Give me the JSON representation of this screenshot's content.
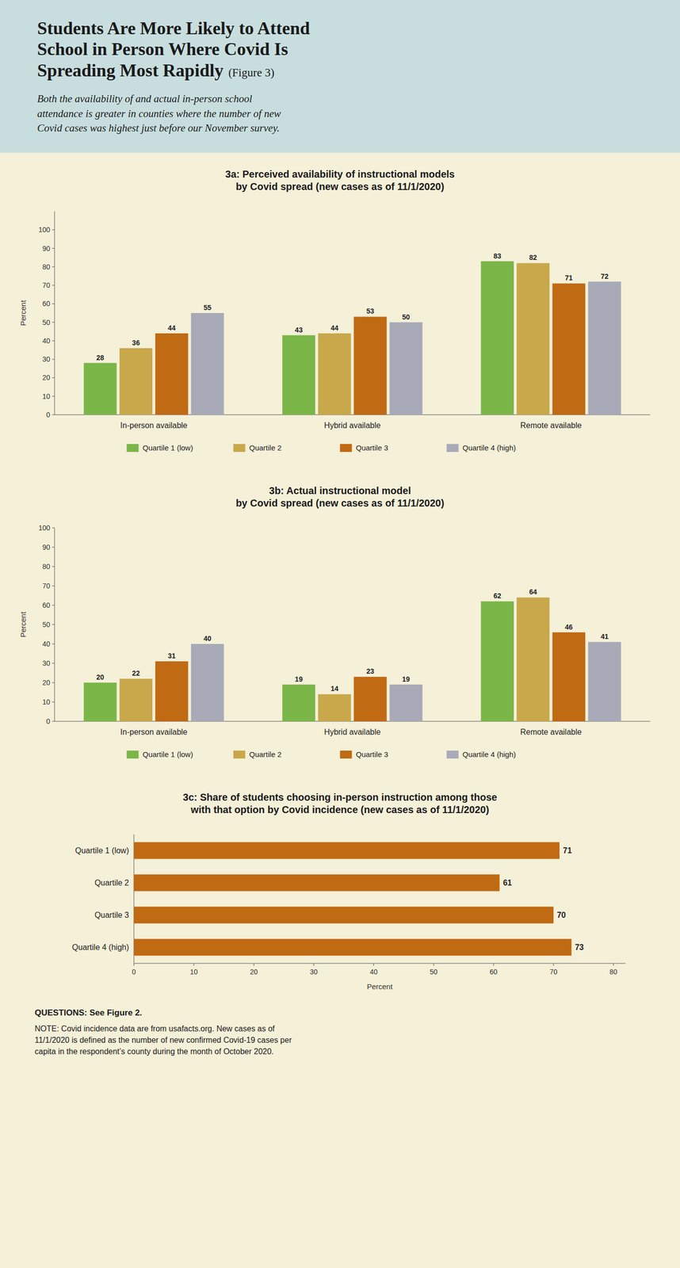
{
  "title": "Students Are More Likely to Attend\nSchool in Person Where Covid Is\nSpreading Most Rapidly",
  "subtitle": "Both the availability of and actual in-person school\nattendance is greater in counties where the number of new\nCovid cases was highest just before our November survey.",
  "annotations": [
    "(Figure 3)",
    "QUESTIONS: See Figure 2.",
    "NOTE: Covid incidence data are from usafacts.org. New cases as of\n11/1/2020 is defined as the number of new confirmed Covid-19 cases per\ncapita in the respondent’s county during the month of October 2020."
  ],
  "chart_data": [
    {
      "type": "bar",
      "title": "3a: Perceived availability of instructional models\nby Covid spread (new cases as of 11/1/2020)",
      "categories": [
        "In-person available",
        "Hybrid available",
        "Remote available"
      ],
      "series": [
        {
          "name": "Quartile 1 (low)",
          "color": "#7ab648",
          "values": [
            28,
            43,
            83
          ]
        },
        {
          "name": "Quartile 2",
          "color": "#c8a84b",
          "values": [
            36,
            44,
            82
          ]
        },
        {
          "name": "Quartile 3",
          "color": "#c06a14",
          "values": [
            44,
            53,
            71
          ]
        },
        {
          "name": "Quartile 4 (high)",
          "color": "#a8aab8",
          "values": [
            55,
            50,
            72
          ]
        }
      ],
      "ylabel": "Percent",
      "ylim": [
        0,
        110
      ],
      "yticks": [
        0,
        10,
        20,
        30,
        40,
        50,
        60,
        70,
        80,
        90,
        100
      ],
      "grid": false,
      "legend": "bottom",
      "data_labels": true
    },
    {
      "type": "bar",
      "title": "3b: Actual instructional model\nby Covid spread (new cases as of 11/1/2020)",
      "categories": [
        "In-person available",
        "Hybrid available",
        "Remote available"
      ],
      "series": [
        {
          "name": "Quartile 1 (low)",
          "color": "#7ab648",
          "values": [
            20,
            19,
            62
          ]
        },
        {
          "name": "Quartile 2",
          "color": "#c8a84b",
          "values": [
            22,
            14,
            64
          ]
        },
        {
          "name": "Quartile 3",
          "color": "#c06a14",
          "values": [
            31,
            23,
            46
          ]
        },
        {
          "name": "Quartile 4 (high)",
          "color": "#a8aab8",
          "values": [
            40,
            19,
            41
          ]
        }
      ],
      "ylabel": "Percent",
      "ylim": [
        0,
        100
      ],
      "yticks": [
        0,
        10,
        20,
        30,
        40,
        50,
        60,
        70,
        80,
        90,
        100
      ],
      "grid": false,
      "legend": "bottom",
      "data_labels": true
    },
    {
      "type": "bar",
      "orientation": "horizontal",
      "title": "3c: Share of students choosing in-person instruction among those\nwith that option by Covid incidence (new cases as of 11/1/2020)",
      "categories": [
        "Quartile 4 (high)",
        "Quartile 3",
        "Quartile 2",
        "Quartile 1 (low)"
      ],
      "values": [
        73,
        70,
        61,
        71
      ],
      "color": "#c06a14",
      "xlabel": "Percent",
      "xlim": [
        0,
        82
      ],
      "xticks": [
        0,
        10,
        20,
        30,
        40,
        50,
        60,
        70,
        80
      ],
      "grid": false,
      "data_labels": true
    }
  ]
}
